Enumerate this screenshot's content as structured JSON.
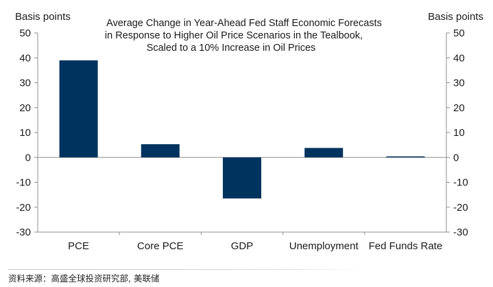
{
  "chart_data": {
    "type": "bar",
    "title": [
      "Average Change in Year-Ahead Fed Staff Economic Forecasts",
      "in Response to Higher Oil Price Scenarios in the Tealbook,",
      "Scaled to a 10% Increase in Oil Prices"
    ],
    "ylabel_left": "Basis points",
    "ylabel_right": "Basis points",
    "ylim": [
      -30,
      50
    ],
    "yticks": [
      50,
      40,
      30,
      20,
      10,
      0,
      -10,
      -20,
      -30
    ],
    "categories": [
      "PCE",
      "Core PCE",
      "GDP",
      "Unemployment",
      "Fed Funds Rate"
    ],
    "values": [
      39,
      5.3,
      -16.5,
      3.8,
      0.3
    ],
    "bar_color": "#00335e",
    "grid": false,
    "legend": "none"
  },
  "footer": {
    "source": "资料来源：高盛全球投资研究部, 美联储"
  }
}
